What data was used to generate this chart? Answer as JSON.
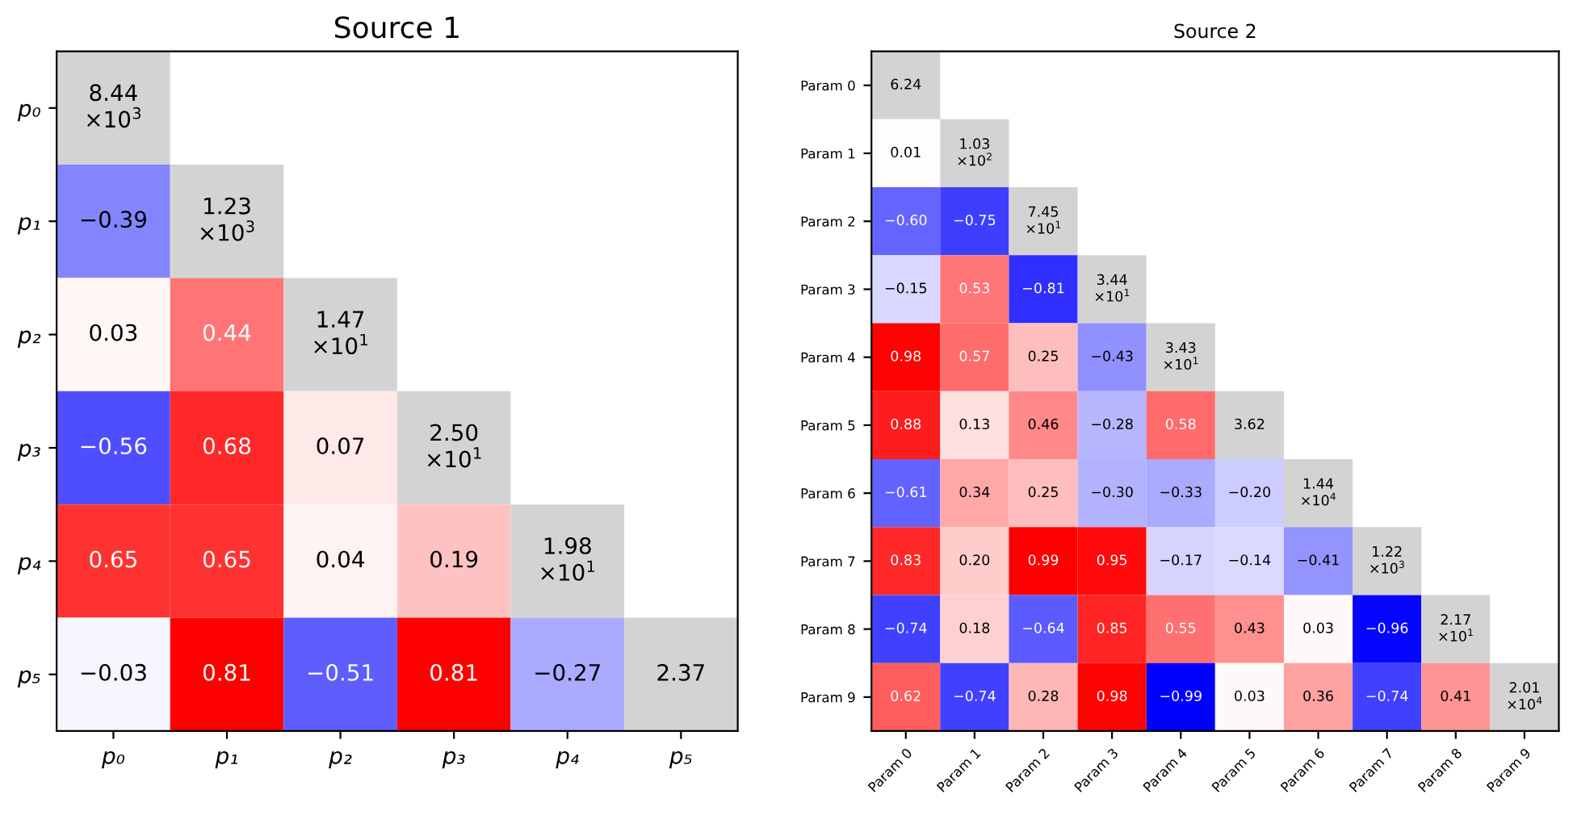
{
  "chart_data": [
    {
      "type": "heatmap",
      "title": "Source 1",
      "categories": [
        "p₀",
        "p₁",
        "p₂",
        "p₃",
        "p₄",
        "p₅"
      ],
      "y_categories": [
        "p₀",
        "p₁",
        "p₂",
        "p₃",
        "p₄",
        "p₅"
      ],
      "cells": [
        [
          8440,
          null,
          null,
          null,
          null,
          null
        ],
        [
          -0.39,
          1230,
          null,
          null,
          null,
          null
        ],
        [
          0.03,
          0.44,
          14.7,
          null,
          null,
          null
        ],
        [
          -0.56,
          0.68,
          0.07,
          25.0,
          null,
          null
        ],
        [
          0.65,
          0.65,
          0.04,
          0.19,
          19.8,
          null
        ],
        [
          -0.03,
          0.81,
          -0.51,
          0.81,
          -0.27,
          2.37
        ]
      ],
      "cell_labels": [
        [
          "8.44\n×10$^{3}$",
          null,
          null,
          null,
          null,
          null
        ],
        [
          "−0.39",
          "1.23\n×10$^{3}$",
          null,
          null,
          null,
          null
        ],
        [
          "0.03",
          "0.44",
          "1.47\n×10$^{1}$",
          null,
          null,
          null
        ],
        [
          "−0.56",
          "0.68",
          "0.07",
          "2.50\n×10$^{1}$",
          null,
          null
        ],
        [
          "0.65",
          "0.65",
          "0.04",
          "0.19",
          "1.98\n×10$^{1}$",
          null
        ],
        [
          "−0.03",
          "0.81",
          "−0.51",
          "0.81",
          "−0.27",
          "2.37"
        ]
      ]
    },
    {
      "type": "heatmap",
      "title": "Source 2",
      "categories": [
        "Param 0",
        "Param 1",
        "Param 2",
        "Param 3",
        "Param 4",
        "Param 5",
        "Param 6",
        "Param 7",
        "Param 8",
        "Param 9"
      ],
      "y_categories": [
        "Param 0",
        "Param 1",
        "Param 2",
        "Param 3",
        "Param 4",
        "Param 5",
        "Param 6",
        "Param 7",
        "Param 8",
        "Param 9"
      ],
      "cells": [
        [
          6.24,
          null,
          null,
          null,
          null,
          null,
          null,
          null,
          null,
          null
        ],
        [
          0.01,
          103,
          null,
          null,
          null,
          null,
          null,
          null,
          null,
          null
        ],
        [
          -0.6,
          -0.75,
          74.5,
          null,
          null,
          null,
          null,
          null,
          null,
          null
        ],
        [
          -0.15,
          0.53,
          -0.81,
          34.4,
          null,
          null,
          null,
          null,
          null,
          null
        ],
        [
          0.98,
          0.57,
          0.25,
          -0.43,
          34.3,
          null,
          null,
          null,
          null,
          null
        ],
        [
          0.88,
          0.13,
          0.46,
          -0.28,
          0.58,
          3.62,
          null,
          null,
          null,
          null
        ],
        [
          -0.61,
          0.34,
          0.25,
          -0.3,
          -0.33,
          -0.2,
          14400,
          null,
          null,
          null
        ],
        [
          0.83,
          0.2,
          0.99,
          0.95,
          -0.17,
          -0.14,
          -0.41,
          1220,
          null,
          null
        ],
        [
          -0.74,
          0.18,
          -0.64,
          0.85,
          0.55,
          0.43,
          0.03,
          -0.96,
          21.7,
          null
        ],
        [
          0.62,
          -0.74,
          0.28,
          0.98,
          -0.99,
          0.03,
          0.36,
          -0.74,
          0.41,
          20100
        ]
      ],
      "cell_labels": [
        [
          "6.24",
          null,
          null,
          null,
          null,
          null,
          null,
          null,
          null,
          null
        ],
        [
          "0.01",
          "1.03\n×10$^{2}$",
          null,
          null,
          null,
          null,
          null,
          null,
          null,
          null
        ],
        [
          "−0.60",
          "−0.75",
          "7.45\n×10$^{1}$",
          null,
          null,
          null,
          null,
          null,
          null,
          null
        ],
        [
          "−0.15",
          "0.53",
          "−0.81",
          "3.44\n×10$^{1}$",
          null,
          null,
          null,
          null,
          null,
          null
        ],
        [
          "0.98",
          "0.57",
          "0.25",
          "−0.43",
          "3.43\n×10$^{1}$",
          null,
          null,
          null,
          null,
          null
        ],
        [
          "0.88",
          "0.13",
          "0.46",
          "−0.28",
          "0.58",
          "3.62",
          null,
          null,
          null,
          null
        ],
        [
          "−0.61",
          "0.34",
          "0.25",
          "−0.30",
          "−0.33",
          "−0.20",
          "1.44\n×10$^{4}$",
          null,
          null,
          null
        ],
        [
          "0.83",
          "0.20",
          "0.99",
          "0.95",
          "−0.17",
          "−0.14",
          "−0.41",
          "1.22\n×10$^{3}$",
          null,
          null
        ],
        [
          "−0.74",
          "0.18",
          "−0.64",
          "0.85",
          "0.55",
          "0.43",
          "0.03",
          "−0.96",
          "2.17\n×10$^{1}$",
          null
        ],
        [
          "0.62",
          "−0.74",
          "0.28",
          "0.98",
          "−0.99",
          "0.03",
          "0.36",
          "−0.74",
          "0.41",
          "2.01\n×10$^{4}$"
        ]
      ]
    }
  ]
}
